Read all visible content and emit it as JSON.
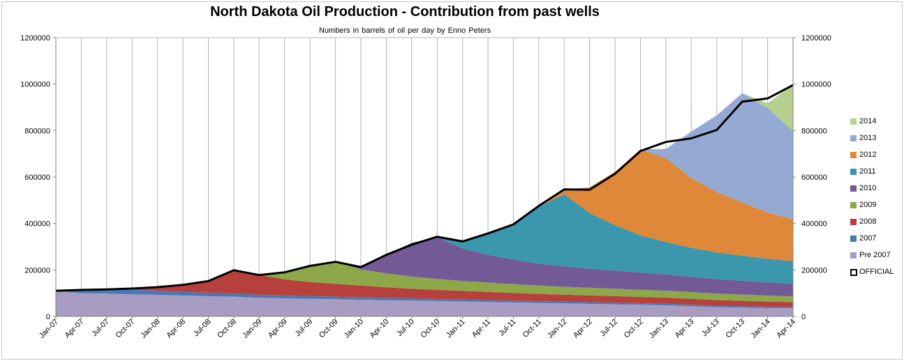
{
  "chart_data": {
    "type": "area",
    "title": "North Dakota Oil Production -  Contribution from past wells",
    "subtitle": "Numbers in barrels of oil per day    by Enno Peters",
    "xlabel": "",
    "ylabel": "",
    "ylim": [
      0,
      1200000
    ],
    "y_ticks": [
      "0",
      "200000",
      "400000",
      "600000",
      "800000",
      "1000000",
      "1200000"
    ],
    "grid": "vertical gridlines at every 3 months",
    "legend_position": "right",
    "x_start": "2007-01",
    "x_end": "2014-04",
    "x_tick_labels": [
      "Jan-07",
      "Apr-07",
      "Jul-07",
      "Oct-07",
      "Jan-08",
      "Apr-08",
      "Jul-08",
      "Oct-08",
      "Jan-09",
      "Apr-09",
      "Jul-09",
      "Oct-09",
      "Jan-10",
      "Apr-10",
      "Jul-10",
      "Oct-10",
      "Jan-11",
      "Apr-11",
      "Jul-11",
      "Oct-11",
      "Jan-12",
      "Apr-12",
      "Jul-12",
      "Oct-12",
      "Jan-13",
      "Apr-13",
      "Jul-13",
      "Oct-13",
      "Jan-14",
      "Apr-14"
    ],
    "x": [
      "Jan-07",
      "Apr-07",
      "Jul-07",
      "Oct-07",
      "Jan-08",
      "Apr-08",
      "Jul-08",
      "Oct-08",
      "Jan-09",
      "Apr-09",
      "Jul-09",
      "Oct-09",
      "Jan-10",
      "Apr-10",
      "Jul-10",
      "Oct-10",
      "Jan-11",
      "Apr-11",
      "Jul-11",
      "Oct-11",
      "Jan-12",
      "Apr-12",
      "Jul-12",
      "Oct-12",
      "Jan-13",
      "Apr-13",
      "Jul-13",
      "Oct-13",
      "Jan-14",
      "Apr-14"
    ],
    "series": [
      {
        "name": "Pre 2007",
        "color": "#a89cc2",
        "values": [
          110000,
          100000,
          98000,
          95000,
          93000,
          90000,
          87000,
          85000,
          80000,
          78000,
          76000,
          74000,
          72000,
          70000,
          68000,
          66000,
          64000,
          62000,
          60000,
          58000,
          56000,
          54000,
          52000,
          50000,
          48000,
          44000,
          40000,
          38000,
          36000,
          35000
        ]
      },
      {
        "name": "2007",
        "color": "#4a78b3",
        "values": [
          0,
          14000,
          18000,
          20000,
          18000,
          16000,
          15000,
          14000,
          13000,
          12000,
          11500,
          11000,
          10500,
          10000,
          9500,
          9000,
          8700,
          8400,
          8100,
          7800,
          7600,
          7400,
          7200,
          7000,
          6800,
          6600,
          6400,
          6200,
          6000,
          5800
        ]
      },
      {
        "name": "2008",
        "color": "#b8403c",
        "values": [
          0,
          0,
          0,
          0,
          15000,
          30000,
          50000,
          100000,
          85000,
          70000,
          60000,
          55000,
          50000,
          45000,
          42000,
          39000,
          37000,
          35000,
          33000,
          31000,
          30000,
          29000,
          28000,
          27000,
          26000,
          25000,
          24000,
          23000,
          22000,
          21000
        ]
      },
      {
        "name": "2009",
        "color": "#8ca848",
        "values": [
          0,
          0,
          0,
          0,
          0,
          0,
          0,
          0,
          5000,
          30000,
          70000,
          95000,
          70000,
          60000,
          52000,
          47000,
          43000,
          40000,
          38000,
          36000,
          34000,
          33000,
          32000,
          31000,
          30000,
          29000,
          28000,
          27000,
          26000,
          25000
        ]
      },
      {
        "name": "2010",
        "color": "#735a96",
        "values": [
          0,
          0,
          0,
          0,
          0,
          0,
          0,
          0,
          0,
          0,
          0,
          0,
          10000,
          80000,
          145000,
          180000,
          140000,
          120000,
          105000,
          95000,
          88000,
          82000,
          78000,
          74000,
          70000,
          66000,
          62000,
          59000,
          56000,
          54000
        ]
      },
      {
        "name": "2011",
        "color": "#3a97ad",
        "values": [
          0,
          0,
          0,
          0,
          0,
          0,
          0,
          0,
          0,
          0,
          0,
          0,
          0,
          0,
          0,
          0,
          30000,
          90000,
          155000,
          245000,
          310000,
          240000,
          195000,
          160000,
          140000,
          125000,
          115000,
          108000,
          102000,
          97000
        ]
      },
      {
        "name": "2012",
        "color": "#e08839",
        "values": [
          0,
          0,
          0,
          0,
          0,
          0,
          0,
          0,
          0,
          0,
          0,
          0,
          0,
          0,
          0,
          0,
          0,
          0,
          0,
          0,
          20000,
          110000,
          230000,
          370000,
          360000,
          300000,
          260000,
          230000,
          200000,
          180000
        ]
      },
      {
        "name": "2013",
        "color": "#95aad3",
        "values": [
          0,
          0,
          0,
          0,
          0,
          0,
          0,
          0,
          0,
          0,
          0,
          0,
          0,
          0,
          0,
          0,
          0,
          0,
          0,
          0,
          0,
          0,
          0,
          0,
          40000,
          200000,
          330000,
          470000,
          450000,
          380000
        ]
      },
      {
        "name": "2014",
        "color": "#b5d08f",
        "values": [
          0,
          0,
          0,
          0,
          0,
          0,
          0,
          0,
          0,
          0,
          0,
          0,
          0,
          0,
          0,
          0,
          0,
          0,
          0,
          0,
          0,
          0,
          0,
          0,
          0,
          0,
          0,
          0,
          20000,
          200000
        ]
      }
    ],
    "official": {
      "name": "OFFICIAL",
      "color": "#000000",
      "values": [
        110000,
        114000,
        116000,
        120000,
        126000,
        136000,
        152000,
        199000,
        178000,
        190000,
        217500,
        235000,
        212500,
        265000,
        308500,
        343000,
        322700,
        357400,
        396100,
        475800,
        546600,
        545400,
        614200,
        712000,
        750800,
        766600,
        802400,
        924200,
        938000,
        995800
      ]
    },
    "legend": [
      "2014",
      "2013",
      "2012",
      "2011",
      "2010",
      "2009",
      "2008",
      "2007",
      "Pre 2007",
      "OFFICIAL"
    ]
  }
}
